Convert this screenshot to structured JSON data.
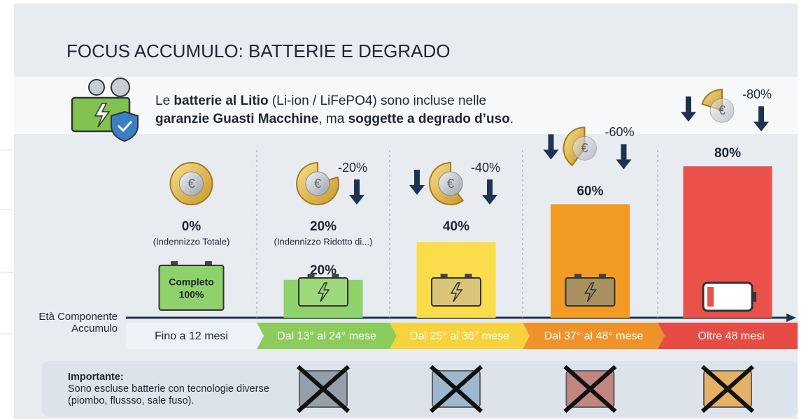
{
  "chart_data": {
    "type": "bar",
    "title": "FOCUS ACCUMULO: BATTERIE E DEGRADO",
    "intro": [
      [
        "Le ",
        "batterie al Litio",
        " (Li-ion / LiFePO4) sono incluse nelle"
      ],
      [
        "garanzie Guasti Macchine",
        ", ma ",
        "soggette a degrado d’uso",
        "."
      ]
    ],
    "x_label": "Età Componente Accumulo",
    "categories": [
      "Fino a 12 mesi",
      "Dal 13° al 24° mese",
      "Dal 25° al 36° mese",
      "Dal 37° al 48° mese",
      "Oltre 48 mesi"
    ],
    "values": [
      0,
      20,
      40,
      60,
      80
    ],
    "value_labels": [
      "0%",
      "20%",
      "40%",
      "60%",
      "80%"
    ],
    "sub_labels": [
      "(Indennizzo Totale)",
      "(Indennizzo Ridotto di...)",
      null,
      null,
      null
    ],
    "bar_labels": [
      null,
      "20%",
      null,
      null,
      null
    ],
    "change_labels": [
      null,
      "-20%",
      "-40%",
      "-60%",
      "-80%"
    ],
    "full_battery_label": [
      "Completo",
      "100%"
    ],
    "colors": [
      "#e9eef4",
      "#8fd16a",
      "#fbdc4a",
      "#f39a25",
      "#e9514a"
    ],
    "band_colors": [
      "#eef2f7",
      "#8ccc5c",
      "#f6d33c",
      "#f0922a",
      "#e64c44"
    ],
    "ylim": [
      0,
      100
    ],
    "note_title": "Importante:",
    "note_text": "Sono escluse batterie con tecnologie diverse (piombo, flussso, sale fuso)."
  }
}
